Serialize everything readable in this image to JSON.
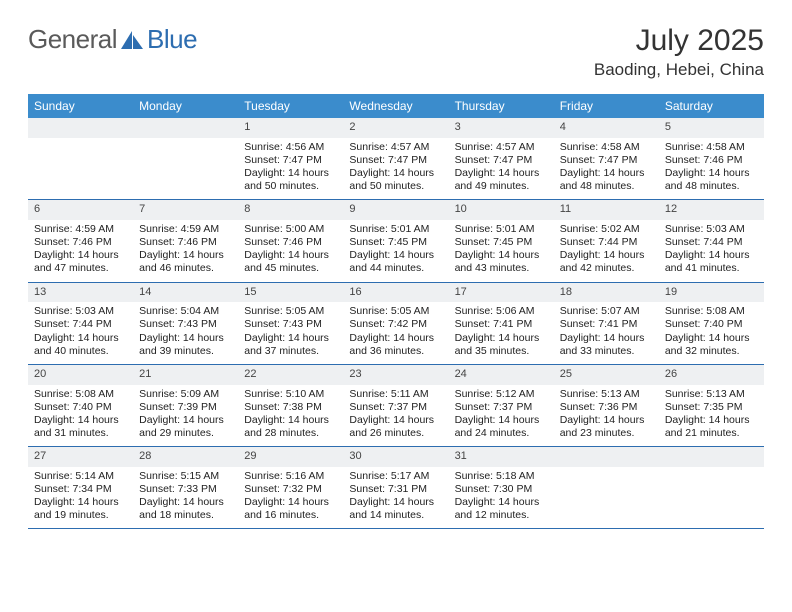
{
  "brand": {
    "text_general": "General",
    "text_blue": "Blue"
  },
  "title": "July 2025",
  "location": "Baoding, Hebei, China",
  "colors": {
    "header_bg": "#3b8ccc",
    "header_text": "#ffffff",
    "daynum_bg": "#eef0f2",
    "week_border": "#2d6db0",
    "logo_gray": "#5a5a5a",
    "logo_blue": "#2d6db0",
    "sail_fill": "#2d6db0"
  },
  "weekdays": [
    "Sunday",
    "Monday",
    "Tuesday",
    "Wednesday",
    "Thursday",
    "Friday",
    "Saturday"
  ],
  "layout": {
    "columns": 7,
    "rows": 5,
    "first_weekday_index": 2,
    "days_in_month": 31
  },
  "days": [
    {
      "n": 1,
      "sunrise": "4:56 AM",
      "sunset": "7:47 PM",
      "daylight": "14 hours and 50 minutes."
    },
    {
      "n": 2,
      "sunrise": "4:57 AM",
      "sunset": "7:47 PM",
      "daylight": "14 hours and 50 minutes."
    },
    {
      "n": 3,
      "sunrise": "4:57 AM",
      "sunset": "7:47 PM",
      "daylight": "14 hours and 49 minutes."
    },
    {
      "n": 4,
      "sunrise": "4:58 AM",
      "sunset": "7:47 PM",
      "daylight": "14 hours and 48 minutes."
    },
    {
      "n": 5,
      "sunrise": "4:58 AM",
      "sunset": "7:46 PM",
      "daylight": "14 hours and 48 minutes."
    },
    {
      "n": 6,
      "sunrise": "4:59 AM",
      "sunset": "7:46 PM",
      "daylight": "14 hours and 47 minutes."
    },
    {
      "n": 7,
      "sunrise": "4:59 AM",
      "sunset": "7:46 PM",
      "daylight": "14 hours and 46 minutes."
    },
    {
      "n": 8,
      "sunrise": "5:00 AM",
      "sunset": "7:46 PM",
      "daylight": "14 hours and 45 minutes."
    },
    {
      "n": 9,
      "sunrise": "5:01 AM",
      "sunset": "7:45 PM",
      "daylight": "14 hours and 44 minutes."
    },
    {
      "n": 10,
      "sunrise": "5:01 AM",
      "sunset": "7:45 PM",
      "daylight": "14 hours and 43 minutes."
    },
    {
      "n": 11,
      "sunrise": "5:02 AM",
      "sunset": "7:44 PM",
      "daylight": "14 hours and 42 minutes."
    },
    {
      "n": 12,
      "sunrise": "5:03 AM",
      "sunset": "7:44 PM",
      "daylight": "14 hours and 41 minutes."
    },
    {
      "n": 13,
      "sunrise": "5:03 AM",
      "sunset": "7:44 PM",
      "daylight": "14 hours and 40 minutes."
    },
    {
      "n": 14,
      "sunrise": "5:04 AM",
      "sunset": "7:43 PM",
      "daylight": "14 hours and 39 minutes."
    },
    {
      "n": 15,
      "sunrise": "5:05 AM",
      "sunset": "7:43 PM",
      "daylight": "14 hours and 37 minutes."
    },
    {
      "n": 16,
      "sunrise": "5:05 AM",
      "sunset": "7:42 PM",
      "daylight": "14 hours and 36 minutes."
    },
    {
      "n": 17,
      "sunrise": "5:06 AM",
      "sunset": "7:41 PM",
      "daylight": "14 hours and 35 minutes."
    },
    {
      "n": 18,
      "sunrise": "5:07 AM",
      "sunset": "7:41 PM",
      "daylight": "14 hours and 33 minutes."
    },
    {
      "n": 19,
      "sunrise": "5:08 AM",
      "sunset": "7:40 PM",
      "daylight": "14 hours and 32 minutes."
    },
    {
      "n": 20,
      "sunrise": "5:08 AM",
      "sunset": "7:40 PM",
      "daylight": "14 hours and 31 minutes."
    },
    {
      "n": 21,
      "sunrise": "5:09 AM",
      "sunset": "7:39 PM",
      "daylight": "14 hours and 29 minutes."
    },
    {
      "n": 22,
      "sunrise": "5:10 AM",
      "sunset": "7:38 PM",
      "daylight": "14 hours and 28 minutes."
    },
    {
      "n": 23,
      "sunrise": "5:11 AM",
      "sunset": "7:37 PM",
      "daylight": "14 hours and 26 minutes."
    },
    {
      "n": 24,
      "sunrise": "5:12 AM",
      "sunset": "7:37 PM",
      "daylight": "14 hours and 24 minutes."
    },
    {
      "n": 25,
      "sunrise": "5:13 AM",
      "sunset": "7:36 PM",
      "daylight": "14 hours and 23 minutes."
    },
    {
      "n": 26,
      "sunrise": "5:13 AM",
      "sunset": "7:35 PM",
      "daylight": "14 hours and 21 minutes."
    },
    {
      "n": 27,
      "sunrise": "5:14 AM",
      "sunset": "7:34 PM",
      "daylight": "14 hours and 19 minutes."
    },
    {
      "n": 28,
      "sunrise": "5:15 AM",
      "sunset": "7:33 PM",
      "daylight": "14 hours and 18 minutes."
    },
    {
      "n": 29,
      "sunrise": "5:16 AM",
      "sunset": "7:32 PM",
      "daylight": "14 hours and 16 minutes."
    },
    {
      "n": 30,
      "sunrise": "5:17 AM",
      "sunset": "7:31 PM",
      "daylight": "14 hours and 14 minutes."
    },
    {
      "n": 31,
      "sunrise": "5:18 AM",
      "sunset": "7:30 PM",
      "daylight": "14 hours and 12 minutes."
    }
  ],
  "labels": {
    "sunrise": "Sunrise:",
    "sunset": "Sunset:",
    "daylight": "Daylight:"
  }
}
